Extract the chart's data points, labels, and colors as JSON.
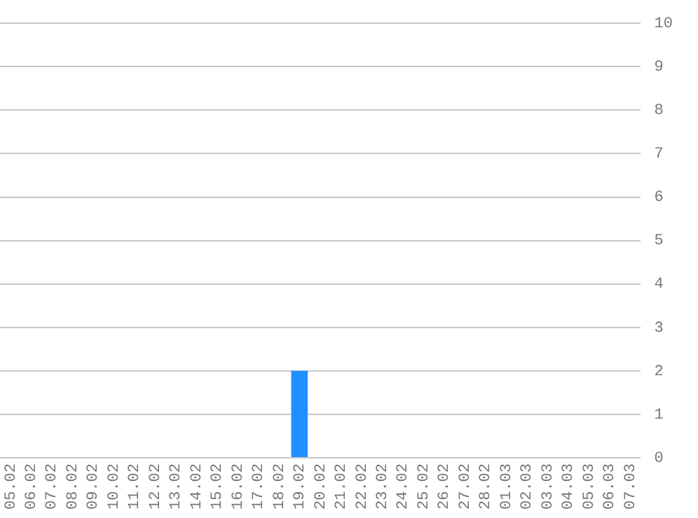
{
  "chart_data": {
    "type": "bar",
    "categories": [
      "05.02",
      "06.02",
      "07.02",
      "08.02",
      "09.02",
      "10.02",
      "11.02",
      "12.02",
      "13.02",
      "14.02",
      "15.02",
      "16.02",
      "17.02",
      "18.02",
      "19.02",
      "20.02",
      "21.02",
      "22.02",
      "23.02",
      "24.02",
      "25.02",
      "26.02",
      "27.02",
      "28.02",
      "01.03",
      "02.03",
      "03.03",
      "04.03",
      "05.03",
      "06.03",
      "07.03"
    ],
    "values": [
      0,
      0,
      0,
      0,
      0,
      0,
      0,
      0,
      0,
      0,
      0,
      0,
      0,
      0,
      2,
      0,
      0,
      0,
      0,
      0,
      0,
      0,
      0,
      0,
      0,
      0,
      0,
      0,
      0,
      0,
      0
    ],
    "color": "#1e90ff",
    "ylim": [
      0,
      10
    ],
    "yticks": [
      0,
      1,
      2,
      3,
      4,
      5,
      6,
      7,
      8,
      9,
      10
    ],
    "grid": "y",
    "legend": false
  }
}
